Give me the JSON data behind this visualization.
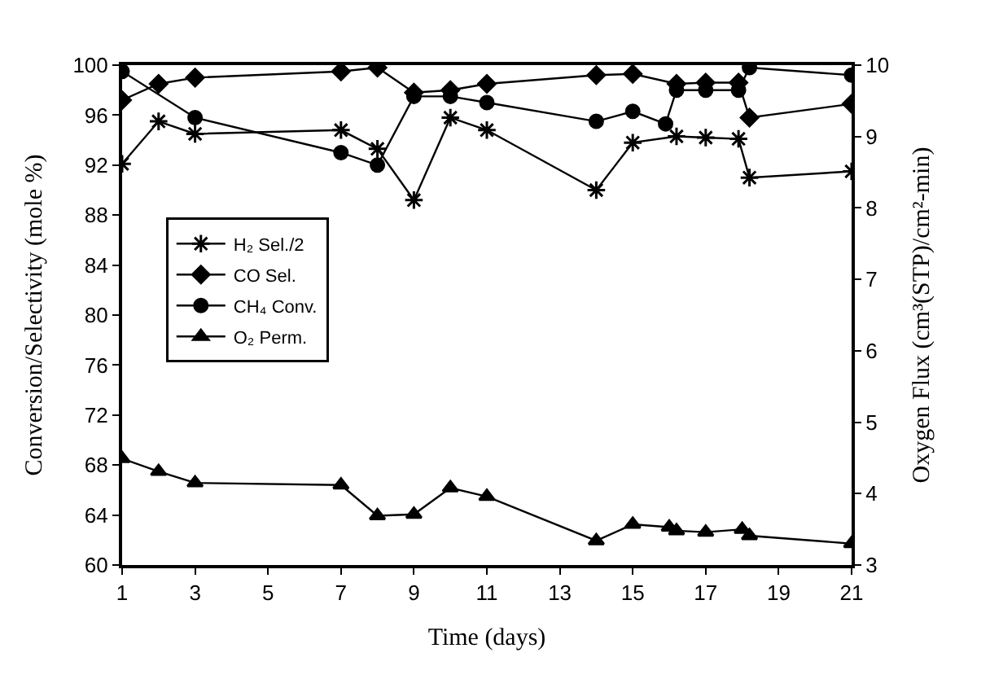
{
  "chart_data": {
    "type": "line",
    "xlabel": "Time (days)",
    "ylabel": "Conversion/Selectivity (mole %)",
    "y2label": "Oxygen Flux (cm³(STP)/cm²-min)",
    "xlim": [
      1,
      21
    ],
    "xticks": [
      1,
      3,
      5,
      7,
      9,
      11,
      13,
      15,
      17,
      19,
      21
    ],
    "ylim": [
      60,
      100
    ],
    "yticks": [
      60,
      64,
      68,
      72,
      76,
      80,
      84,
      88,
      92,
      96,
      100
    ],
    "y2lim": [
      3,
      10
    ],
    "y2ticks": [
      3,
      4,
      5,
      6,
      7,
      8,
      9,
      10
    ],
    "grid": false,
    "legend": "left",
    "line_style": "solid",
    "series": [
      {
        "name": "H₂ Sel./2",
        "color": "#000000",
        "marker": "cross",
        "x": [
          1,
          2,
          3,
          7,
          8,
          9,
          10,
          11,
          14,
          15,
          16.2,
          17,
          17.9,
          18.2,
          21
        ],
        "values": [
          92.1,
          95.5,
          94.5,
          94.8,
          93.3,
          89.2,
          95.8,
          94.8,
          90.0,
          93.8,
          94.3,
          94.2,
          94.1,
          91.0,
          91.5
        ]
      },
      {
        "name": "CO Sel.",
        "color": "#000000",
        "marker": "diamond",
        "x": [
          1,
          2,
          3,
          7,
          8,
          9,
          10,
          11,
          14,
          15,
          16.2,
          17,
          17.9,
          18.2,
          21
        ],
        "values": [
          97.2,
          98.5,
          99.0,
          99.5,
          99.8,
          97.8,
          98.0,
          98.5,
          99.2,
          99.3,
          98.5,
          98.6,
          98.6,
          95.8,
          96.9
        ]
      },
      {
        "name": "CH₄ Conv.",
        "color": "#000000",
        "marker": "circle",
        "x": [
          1,
          3,
          7,
          8,
          9,
          10,
          11,
          14,
          15,
          15.9,
          16.2,
          17,
          17.9,
          18.2,
          21
        ],
        "values": [
          99.5,
          95.8,
          93.0,
          92.0,
          97.5,
          97.5,
          97.0,
          95.5,
          96.3,
          95.3,
          98.0,
          98.0,
          98.0,
          99.8,
          99.2
        ]
      },
      {
        "name": "O₂ Perm.",
        "color": "#000000",
        "marker": "triangle",
        "axis": "y2",
        "x": [
          1,
          2,
          3,
          7,
          8,
          9,
          10,
          11,
          14,
          15,
          16,
          16.2,
          17,
          18,
          18.2,
          21
        ],
        "values": [
          4.49,
          4.31,
          4.15,
          4.12,
          3.69,
          3.71,
          4.08,
          3.96,
          3.34,
          3.57,
          3.53,
          3.48,
          3.46,
          3.5,
          3.41,
          3.3
        ]
      }
    ]
  }
}
